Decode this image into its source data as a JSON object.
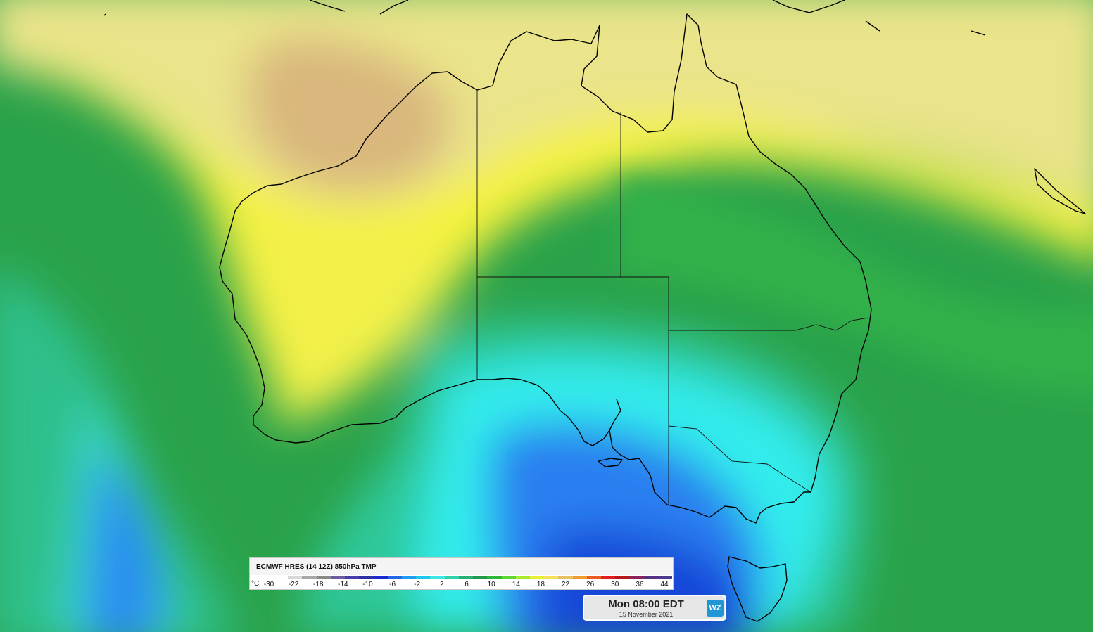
{
  "map": {
    "region": "Australia",
    "field": "850hPa temperature",
    "colors": {
      "hot_tan": "#d9b77d",
      "warm_cream": "#eae48a",
      "yellow": "#f5f23c",
      "green_light": "#7fd93a",
      "green": "#2aa24a",
      "teal": "#2fc89a",
      "cyan": "#32ecec",
      "blue": "#2a7ff0",
      "deep_blue": "#1246d8",
      "coast_line": "#000000"
    }
  },
  "legend": {
    "title": "ECMWF HRES (14 12Z) 850hPa TMP",
    "unit": "°C",
    "ticks": [
      "-30",
      "-22",
      "-18",
      "-14",
      "-10",
      "-6",
      "-2",
      "2",
      "6",
      "10",
      "14",
      "18",
      "22",
      "26",
      "30",
      "36",
      "44"
    ],
    "colors": [
      "#ffffff",
      "#d8d8d8",
      "#a8a8a8",
      "#8a8a8a",
      "#6e5aa0",
      "#4a3ea8",
      "#2e2ea8",
      "#1a2ad0",
      "#2466e8",
      "#1e9ef0",
      "#20c8f0",
      "#3ae6e6",
      "#30d0a8",
      "#28b074",
      "#209a48",
      "#2eb838",
      "#60d830",
      "#a8ec30",
      "#e8f030",
      "#f4e25a",
      "#e8c060",
      "#f09a30",
      "#f05a20",
      "#e02020",
      "#b81818",
      "#8a2058",
      "#5a2e80",
      "#483a90"
    ]
  },
  "time": {
    "label": "Mon 08:00 EDT",
    "date": "15 November 2021",
    "logo": "WZ"
  }
}
